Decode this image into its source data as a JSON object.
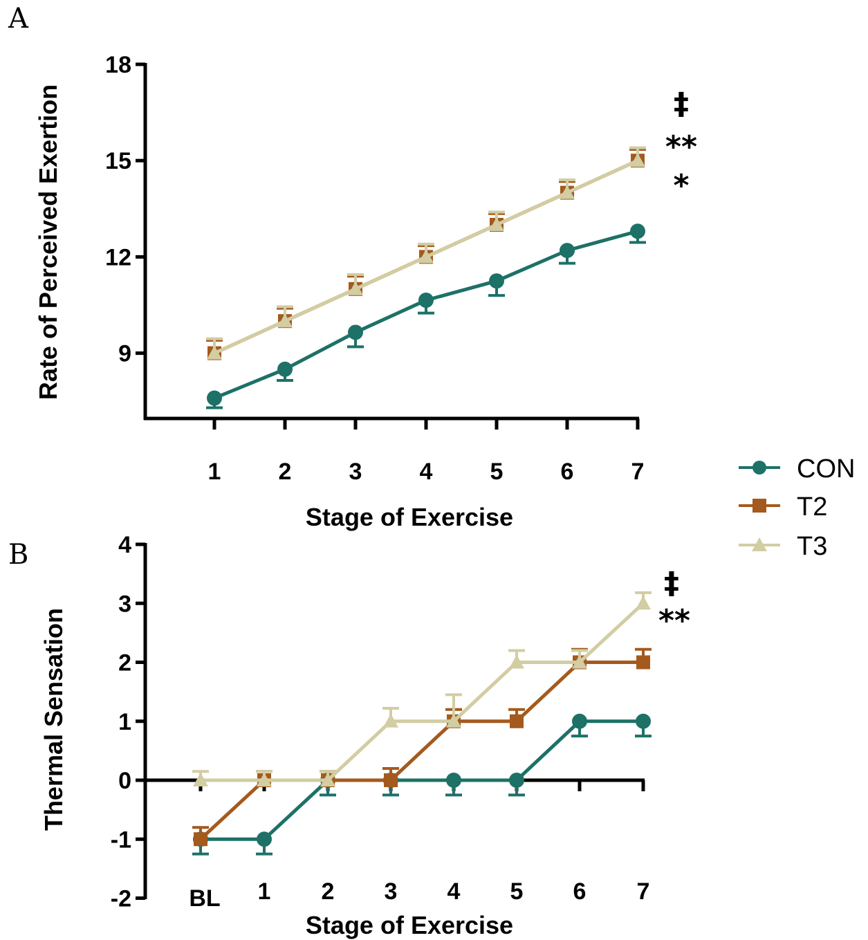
{
  "panels": {
    "a_label": "A",
    "b_label": "B"
  },
  "legend": [
    {
      "name": "CON",
      "color": "#1d7167",
      "marker": "circle"
    },
    {
      "name": "T2",
      "color": "#a45a1d",
      "marker": "square"
    },
    {
      "name": "T3",
      "color": "#d2cda2",
      "marker": "triangle"
    }
  ],
  "chart_data": [
    {
      "type": "line",
      "panel": "A",
      "xlabel": "Stage of Exercise",
      "ylabel": "Rate of Perceived Exertion",
      "categories": [
        "1",
        "2",
        "3",
        "4",
        "5",
        "6",
        "7"
      ],
      "yticks": [
        "9",
        "12",
        "15",
        "18"
      ],
      "ylim": [
        7,
        18
      ],
      "annotations": [
        "‡",
        "**",
        "*"
      ],
      "series": [
        {
          "name": "CON",
          "values": [
            7.6,
            8.5,
            9.65,
            10.65,
            11.25,
            12.2,
            12.8
          ],
          "error": [
            0.3,
            0.35,
            0.45,
            0.4,
            0.45,
            0.4,
            0.35
          ]
        },
        {
          "name": "T2",
          "values": [
            9.0,
            10.0,
            11.0,
            12.0,
            13.0,
            14.0,
            15.0
          ],
          "error": [
            0.4,
            0.4,
            0.4,
            0.35,
            0.35,
            0.35,
            0.35
          ]
        },
        {
          "name": "T3",
          "values": [
            9.0,
            10.0,
            11.0,
            12.0,
            13.0,
            14.0,
            15.0
          ],
          "error": [
            0.45,
            0.45,
            0.45,
            0.4,
            0.4,
            0.4,
            0.4
          ]
        }
      ]
    },
    {
      "type": "line",
      "panel": "B",
      "xlabel": "Stage of Exercise",
      "ylabel": "Thermal Sensation",
      "categories": [
        "BL",
        "1",
        "2",
        "3",
        "4",
        "5",
        "6",
        "7"
      ],
      "yticks": [
        "-2",
        "-1",
        "0",
        "1",
        "2",
        "3",
        "4"
      ],
      "ylim": [
        -2,
        4
      ],
      "annotations": [
        "‡",
        "**"
      ],
      "series": [
        {
          "name": "CON",
          "values": [
            -1,
            -1,
            0,
            0,
            0,
            0,
            1,
            1
          ],
          "error": [
            0.25,
            0.25,
            0.25,
            0.25,
            0.25,
            0.25,
            0.25,
            0.25
          ]
        },
        {
          "name": "T2",
          "values": [
            -1,
            0,
            0,
            0,
            1,
            1,
            2,
            2
          ],
          "error": [
            0.2,
            0.15,
            0.15,
            0.2,
            0.2,
            0.2,
            0.22,
            0.22
          ]
        },
        {
          "name": "T3",
          "values": [
            0,
            0,
            0,
            1,
            1,
            2,
            2,
            3
          ],
          "error": [
            0.15,
            0.15,
            0.15,
            0.22,
            0.45,
            0.2,
            0.2,
            0.18
          ]
        }
      ]
    }
  ]
}
